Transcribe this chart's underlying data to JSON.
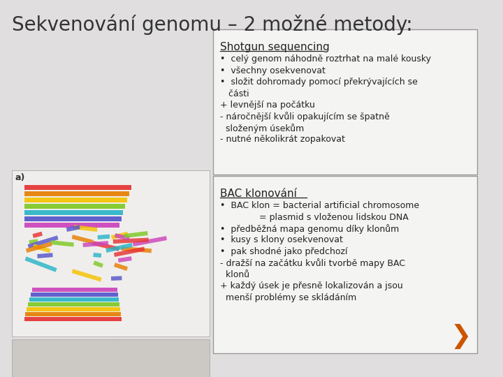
{
  "title": "Sekvenování genomu – 2 možné metody:",
  "title_fontsize": 20,
  "title_color": "#333333",
  "background_color": "#e0dede",
  "box1_title": "Shotgun sequencing",
  "box1_lines": [
    "•  celý genom náhodně roztrhat na malé kousky",
    "•  všechny osekvenovat",
    "•  složit dohromady pomocí překrývajících se",
    "   části",
    "+ levnější na počátku",
    "- náročnější kvůli opakujícím se špatně",
    "  složeným úsekům",
    "- nutné několikrát zopakovat"
  ],
  "box2_title": "BAC klonování",
  "box2_lines": [
    "•  BAC klon = bacterial artificial chromosome",
    "              = plasmid s vloženou lidskou DNA",
    "•  předběžná mapa genomu díky klonům",
    "•  kusy s klony osekvenovat",
    "•  pak shodné jako předchozí",
    "- dražší na začátku kvůli tvorbě mapy BAC",
    "  klonů",
    "+ každý úsek je přesně lokalizován a jsou",
    "  menší problémy se skládáním"
  ],
  "box_bg": "#f4f4f2",
  "box_border": "#999999",
  "text_color": "#222222",
  "label_a": "a)",
  "arrow_color": "#cc5500",
  "left_img_bg": "#f0eeec",
  "left_bot_bg": "#ccc8c4"
}
